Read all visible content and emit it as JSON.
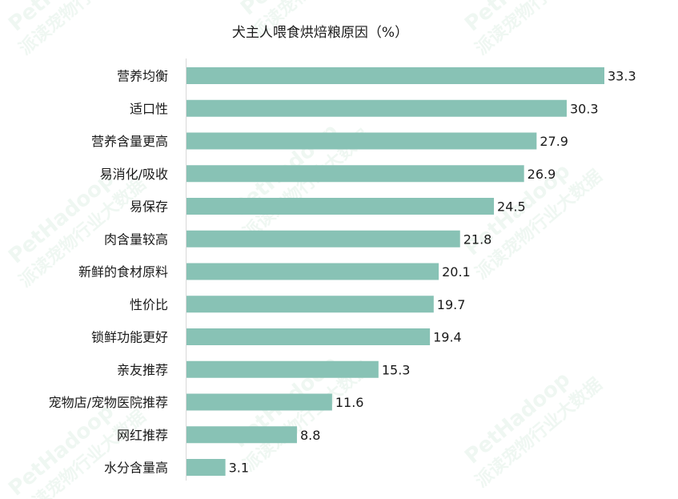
{
  "watermark": {
    "brand": "PetHadoop",
    "slogan": "派读宠物行业大数据"
  },
  "chart_data": {
    "type": "bar",
    "orientation": "horizontal",
    "title": "犬主人喂食烘焙粮原因（%）",
    "xlabel": "",
    "ylabel": "",
    "xlim": [
      0,
      33.3
    ],
    "grid": false,
    "bar_color": "#88c2b5",
    "categories": [
      "营养均衡",
      "适口性",
      "营养含量更高",
      "易消化/吸收",
      "易保存",
      "肉含量较高",
      "新鲜的食材原料",
      "性价比",
      "锁鲜功能更好",
      "亲友推荐",
      "宠物店/宠物医院推荐",
      "网红推荐",
      "水分含量高"
    ],
    "values": [
      33.3,
      30.3,
      27.9,
      26.9,
      24.5,
      21.8,
      20.1,
      19.7,
      19.4,
      15.3,
      11.6,
      8.8,
      3.1
    ],
    "value_labels": [
      "33.3",
      "30.3",
      "27.9",
      "26.9",
      "24.5",
      "21.8",
      "20.1",
      "19.7",
      "19.4",
      "15.3",
      "11.6",
      "8.8",
      "3.1"
    ]
  }
}
